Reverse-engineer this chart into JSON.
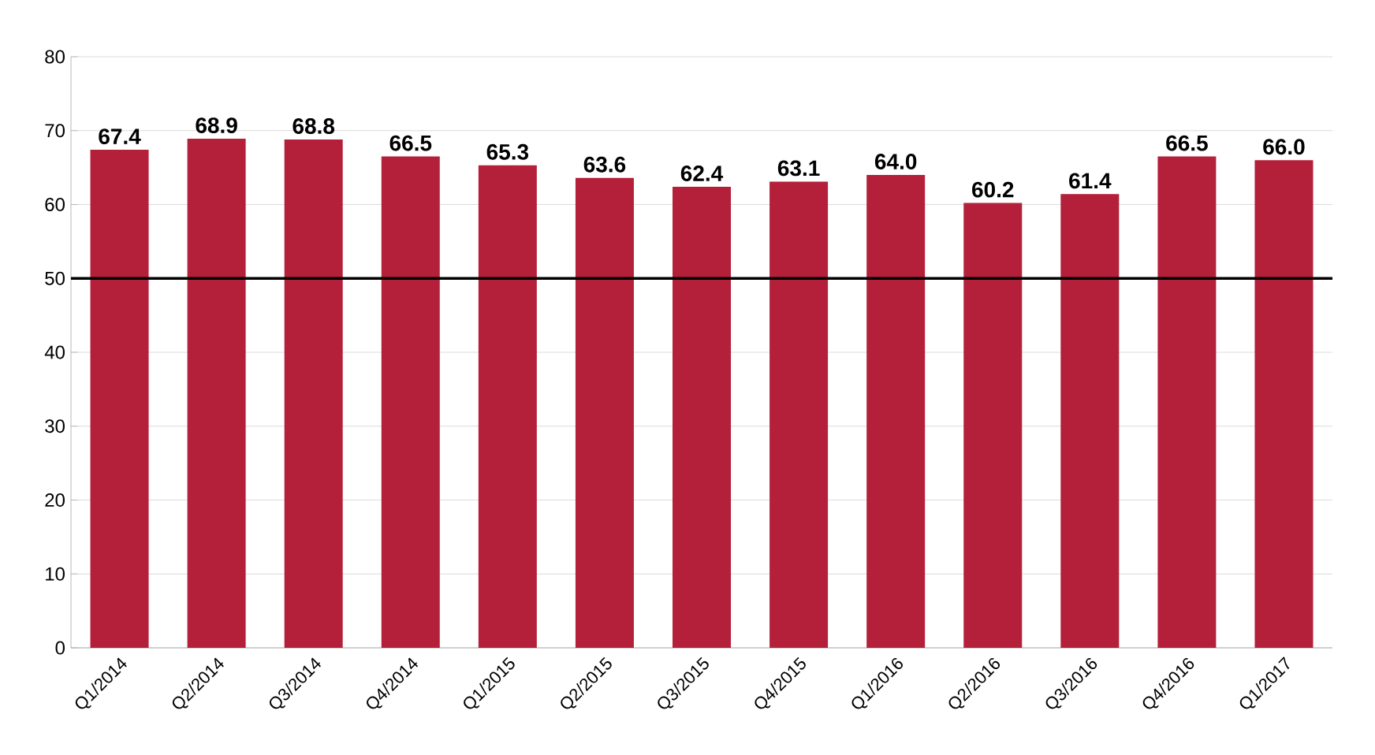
{
  "chart_data": {
    "type": "bar",
    "categories": [
      "Q1/2014",
      "Q2/2014",
      "Q3/2014",
      "Q4/2014",
      "Q1/2015",
      "Q2/2015",
      "Q3/2015",
      "Q4/2015",
      "Q1/2016",
      "Q2/2016",
      "Q3/2016",
      "Q4/2016",
      "Q1/2017"
    ],
    "values": [
      67.4,
      68.9,
      68.8,
      66.5,
      65.3,
      63.6,
      62.4,
      63.1,
      64.0,
      60.2,
      61.4,
      66.5,
      66.0
    ],
    "color": "#b41f3a",
    "value_labels": [
      "67.4",
      "68.9",
      "68.8",
      "66.5",
      "65.3",
      "63.6",
      "62.4",
      "63.1",
      "64.0",
      "60.2",
      "61.4",
      "66.5",
      "66.0"
    ],
    "ylim": [
      0,
      80
    ],
    "yticks": [
      0,
      10,
      20,
      30,
      40,
      50,
      60,
      70,
      80
    ],
    "grid": "y",
    "ref_lines": [
      {
        "axis": "y",
        "value": 50,
        "color": "#000000"
      }
    ]
  }
}
